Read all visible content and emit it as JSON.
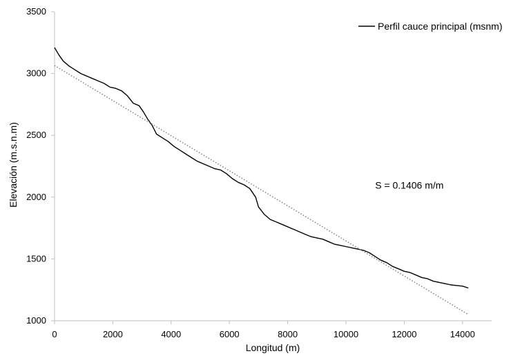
{
  "chart_data": {
    "type": "line",
    "xlabel": "Longitud (m)",
    "ylabel": "Elevación (m.s.n.m)",
    "xlim": [
      0,
      15000
    ],
    "ylim": [
      1000,
      3500
    ],
    "x_ticks": [
      0,
      2000,
      4000,
      6000,
      8000,
      10000,
      12000,
      14000
    ],
    "y_ticks": [
      1000,
      1500,
      2000,
      2500,
      3000,
      3500
    ],
    "x_tick_labels": [
      "0",
      "2000",
      "4000",
      "6000",
      "8000",
      "10000",
      "12000",
      "14000"
    ],
    "y_tick_labels": [
      "1000",
      "1500",
      "2000",
      "2500",
      "3000",
      "3500"
    ],
    "grid": false,
    "legend_position": "top-right",
    "series": [
      {
        "name": "Perfil cauce principal (msnm)",
        "color": "#000000",
        "style": "solid",
        "x": [
          0,
          150,
          300,
          500,
          700,
          900,
          1100,
          1300,
          1500,
          1700,
          1900,
          2100,
          2300,
          2500,
          2700,
          2900,
          3050,
          3200,
          3350,
          3500,
          3700,
          3900,
          4100,
          4300,
          4500,
          4700,
          4900,
          5100,
          5300,
          5500,
          5700,
          5900,
          6100,
          6300,
          6500,
          6700,
          6900,
          7000,
          7200,
          7400,
          7600,
          7800,
          8000,
          8200,
          8400,
          8600,
          8800,
          9000,
          9200,
          9400,
          9600,
          9800,
          10000,
          10200,
          10400,
          10600,
          10800,
          11000,
          11200,
          11400,
          11600,
          11800,
          12000,
          12200,
          12400,
          12600,
          12800,
          13000,
          13200,
          13400,
          13600,
          13800,
          14000,
          14200
        ],
        "values": [
          3210,
          3150,
          3100,
          3060,
          3030,
          3000,
          2980,
          2960,
          2940,
          2920,
          2890,
          2880,
          2860,
          2820,
          2760,
          2740,
          2690,
          2630,
          2580,
          2510,
          2480,
          2450,
          2410,
          2380,
          2350,
          2320,
          2290,
          2270,
          2250,
          2230,
          2220,
          2190,
          2150,
          2120,
          2100,
          2070,
          2000,
          1920,
          1860,
          1820,
          1800,
          1780,
          1760,
          1740,
          1720,
          1700,
          1680,
          1670,
          1660,
          1640,
          1620,
          1610,
          1600,
          1590,
          1580,
          1570,
          1550,
          1520,
          1490,
          1470,
          1440,
          1420,
          1400,
          1390,
          1370,
          1350,
          1340,
          1320,
          1310,
          1300,
          1290,
          1285,
          1280,
          1265
        ]
      },
      {
        "name": "",
        "color": "#7f7f7f",
        "style": "dotted",
        "x": [
          0,
          14200
        ],
        "values": [
          3065,
          1050
        ]
      }
    ],
    "annotations": [
      {
        "text": "S = 0.1406 m/m",
        "x": 11000,
        "y": 2070
      }
    ]
  }
}
